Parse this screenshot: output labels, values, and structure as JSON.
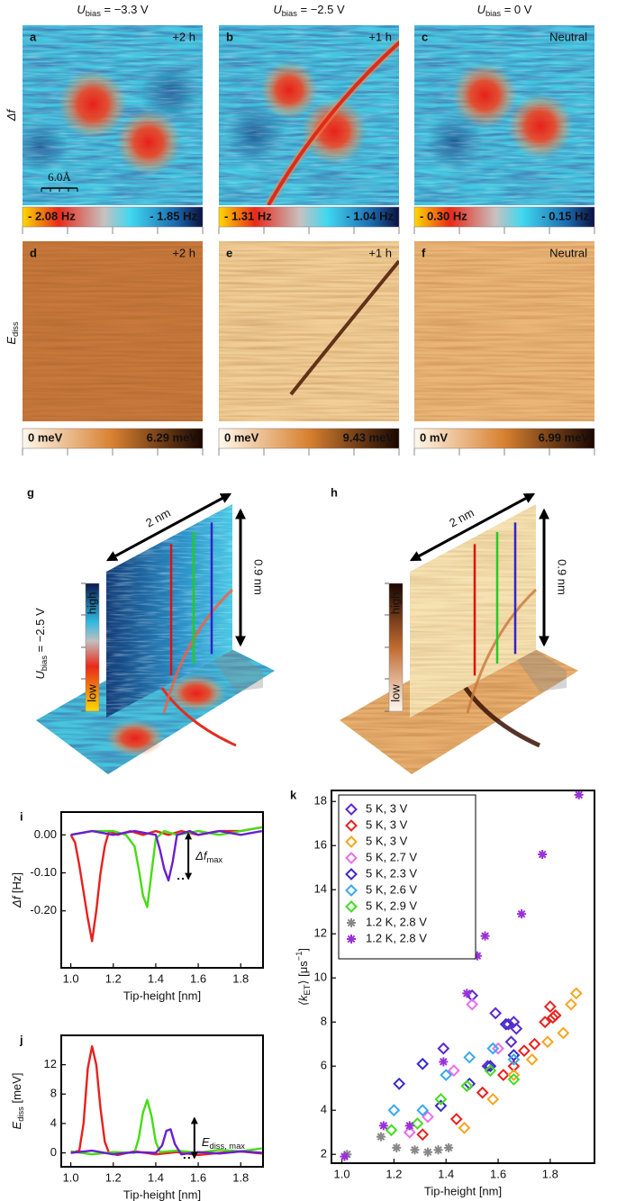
{
  "columns": [
    {
      "main": "U",
      "sub": "bias",
      "rest": " = −3.3 V"
    },
    {
      "main": "U",
      "sub": "bias",
      "rest": " = −2.5 V"
    },
    {
      "main": "U",
      "sub": "bias",
      "rest": " = 0 V"
    }
  ],
  "rows": [
    {
      "main": "Δf"
    },
    {
      "main": "E",
      "sub": "diss"
    }
  ],
  "panels": [
    {
      "letter": "a",
      "tag": "+2 h"
    },
    {
      "letter": "b",
      "tag": "+1 h"
    },
    {
      "letter": "c",
      "tag": "Neutral"
    },
    {
      "letter": "d",
      "tag": "+2 h"
    },
    {
      "letter": "e",
      "tag": "+1 h"
    },
    {
      "letter": "f",
      "tag": "Neutral"
    }
  ],
  "scale_bar": "6.0Å",
  "colorbars": [
    {
      "min": "- 2.08 Hz",
      "max": "- 1.85 Hz"
    },
    {
      "min": "- 1.31 Hz",
      "max": "- 1.04 Hz"
    },
    {
      "min": "- 0.30 Hz",
      "max": "- 0.15 Hz"
    },
    {
      "min": "0 meV",
      "max": "6.29 meV"
    },
    {
      "min": "0 meV",
      "max": "9.43 meV"
    },
    {
      "min": "0 mV",
      "max": "6.99 meV"
    }
  ],
  "maps_3d": [
    {
      "letter": "g",
      "width": "2 nm",
      "height": "0.9 nm",
      "scale_high": "high",
      "scale_low": "low",
      "bias": {
        "main": "U",
        "sub": "bias",
        "rest": " = −2.5 V"
      }
    },
    {
      "letter": "h",
      "width": "2 nm",
      "height": "0.9 nm",
      "scale_high": "high",
      "scale_low": "low"
    }
  ],
  "chart_data": [
    {
      "type": "line",
      "letter": "i",
      "xlabel": "Tip-height [nm]",
      "ylabel": {
        "main": "Δf",
        "rest": " [Hz]"
      },
      "annotation": {
        "main": "Δf",
        "sub": "max"
      },
      "xlim": [
        0.955,
        1.905
      ],
      "ylim": [
        -0.35,
        0.06
      ],
      "xticks": [
        {
          "value": 1.0,
          "label": "1.0"
        },
        {
          "value": 1.2,
          "label": "1.2"
        },
        {
          "value": 1.4,
          "label": "1.4"
        },
        {
          "value": 1.6,
          "label": "1.6"
        },
        {
          "value": 1.8,
          "label": "1.8"
        }
      ],
      "yticks": [
        {
          "value": 0,
          "label": "0.00"
        },
        {
          "value": -0.1,
          "label": "-0.10"
        },
        {
          "value": -0.2,
          "label": "-0.20"
        }
      ],
      "series": [
        {
          "color": "#e8201c",
          "x": [
            1.0,
            1.02,
            1.04,
            1.06,
            1.08,
            1.1,
            1.12,
            1.14,
            1.16,
            1.18,
            1.22,
            1.28,
            1.34,
            1.4,
            1.46,
            1.52,
            1.6,
            1.7,
            1.8,
            1.9
          ],
          "values": [
            0.0,
            -0.02,
            -0.08,
            -0.15,
            -0.22,
            -0.28,
            -0.2,
            -0.1,
            -0.03,
            0.01,
            0.0,
            0.01,
            0.0,
            0.01,
            0.0,
            0.01,
            0.0,
            0.01,
            0.01,
            0.02
          ]
        },
        {
          "color": "#44dd11",
          "x": [
            1.0,
            1.1,
            1.2,
            1.26,
            1.3,
            1.32,
            1.34,
            1.36,
            1.38,
            1.4,
            1.44,
            1.5,
            1.6,
            1.7,
            1.8,
            1.9
          ],
          "values": [
            0.0,
            0.01,
            0.01,
            0.0,
            -0.03,
            -0.09,
            -0.16,
            -0.19,
            -0.1,
            -0.01,
            0.01,
            0.0,
            0.01,
            0.0,
            0.01,
            0.02
          ]
        },
        {
          "color": "#6a1fd0",
          "x": [
            1.0,
            1.1,
            1.2,
            1.3,
            1.4,
            1.42,
            1.44,
            1.46,
            1.48,
            1.5,
            1.56,
            1.6,
            1.7,
            1.8,
            1.9
          ],
          "values": [
            0.0,
            0.01,
            0.0,
            0.01,
            0.0,
            -0.04,
            -0.09,
            -0.12,
            -0.07,
            0.0,
            0.01,
            0.0,
            0.01,
            0.0,
            0.01
          ]
        }
      ]
    },
    {
      "type": "line",
      "letter": "j",
      "xlabel": "Tip-height [nm]",
      "ylabel": {
        "main": "E",
        "sub": "diss",
        "rest": " [meV]"
      },
      "annotation": {
        "main": "E",
        "sub": "diss, max"
      },
      "xlim": [
        0.955,
        1.905
      ],
      "ylim": [
        -1.9,
        16.0
      ],
      "xticks": [
        {
          "value": 1.0,
          "label": "1.0"
        },
        {
          "value": 1.2,
          "label": "1.2"
        },
        {
          "value": 1.4,
          "label": "1.4"
        },
        {
          "value": 1.6,
          "label": "1.6"
        },
        {
          "value": 1.8,
          "label": "1.8"
        }
      ],
      "yticks": [
        0,
        4,
        8,
        12
      ],
      "series": [
        {
          "color": "#e8201c",
          "x": [
            1.0,
            1.04,
            1.06,
            1.08,
            1.1,
            1.12,
            1.14,
            1.16,
            1.18,
            1.22,
            1.3,
            1.4,
            1.5,
            1.6,
            1.7,
            1.8,
            1.9
          ],
          "values": [
            0.0,
            0.3,
            4.0,
            11.5,
            14.5,
            12.0,
            6.0,
            1.5,
            0.0,
            -0.3,
            0.2,
            -0.2,
            0.1,
            -0.3,
            0.0,
            0.2,
            -0.1
          ]
        },
        {
          "color": "#44dd11",
          "x": [
            1.0,
            1.1,
            1.2,
            1.3,
            1.32,
            1.34,
            1.36,
            1.38,
            1.4,
            1.42,
            1.5,
            1.6,
            1.7,
            1.8,
            1.9
          ],
          "values": [
            0.2,
            -0.2,
            0.1,
            0.0,
            2.0,
            5.5,
            7.2,
            5.0,
            1.5,
            0.1,
            0.3,
            0.0,
            0.4,
            0.2,
            0.6
          ]
        },
        {
          "color": "#6a1fd0",
          "x": [
            1.0,
            1.1,
            1.2,
            1.3,
            1.4,
            1.43,
            1.45,
            1.47,
            1.49,
            1.52,
            1.6,
            1.7,
            1.8,
            1.9
          ],
          "values": [
            0.0,
            0.3,
            -0.2,
            0.1,
            0.0,
            1.0,
            3.0,
            3.2,
            1.2,
            -0.2,
            0.1,
            -0.1,
            0.2,
            0.0
          ]
        }
      ]
    },
    {
      "type": "scatter",
      "letter": "k",
      "xlabel": "Tip-height [nm]",
      "ylabel": {
        "main": "⟨k",
        "sub": "ET",
        "rest": "⟩ [μs",
        "sup": "−1",
        "end": "]"
      },
      "legend": "upper left",
      "xlim": [
        0.96,
        1.97
      ],
      "ylim": [
        1.6,
        18.5
      ],
      "xticks": [
        {
          "value": 1.0,
          "label": "1.0"
        },
        {
          "value": 1.2,
          "label": "1.2"
        },
        {
          "value": 1.4,
          "label": "1.4"
        },
        {
          "value": 1.6,
          "label": "1.6"
        },
        {
          "value": 1.8,
          "label": "1.8"
        }
      ],
      "yticks": [
        2,
        4,
        6,
        8,
        10,
        12,
        14,
        16,
        18
      ],
      "series": [
        {
          "name": "5 K, 3 V",
          "color": "#5a2bd0",
          "marker": "diamond",
          "x": [
            1.39,
            1.5,
            1.59,
            1.64,
            1.66,
            1.67,
            1.65,
            1.56
          ],
          "values": [
            6.8,
            9.2,
            8.4,
            7.9,
            8.0,
            7.7,
            7.1,
            6.0
          ]
        },
        {
          "name": "5 K, 3 V",
          "color": "#e8231f",
          "marker": "diamond",
          "x": [
            1.31,
            1.44,
            1.54,
            1.62,
            1.66,
            1.7,
            1.74,
            1.78,
            1.8,
            1.81,
            1.82
          ],
          "values": [
            2.9,
            3.6,
            4.8,
            5.6,
            6.0,
            6.7,
            7.0,
            8.0,
            8.7,
            8.2,
            8.3
          ]
        },
        {
          "name": "5 K, 3 V",
          "color": "#f5a623",
          "marker": "diamond",
          "x": [
            1.47,
            1.58,
            1.66,
            1.73,
            1.79,
            1.85,
            1.88,
            1.9
          ],
          "values": [
            3.2,
            4.5,
            5.6,
            6.3,
            7.1,
            7.5,
            8.8,
            9.3
          ]
        },
        {
          "name": "5 K, 2.7 V",
          "color": "#e870e8",
          "marker": "diamond",
          "x": [
            1.26,
            1.33,
            1.43,
            1.5,
            1.6
          ],
          "values": [
            3.0,
            3.7,
            5.8,
            8.8,
            6.8
          ]
        },
        {
          "name": "5 K, 2.3 V",
          "color": "#3a2bc8",
          "marker": "diamond",
          "x": [
            1.22,
            1.31,
            1.38,
            1.49,
            1.57,
            1.63,
            1.66
          ],
          "values": [
            5.2,
            6.1,
            4.2,
            5.2,
            6.0,
            7.9,
            6.5
          ]
        },
        {
          "name": "5 K, 2.6 V",
          "color": "#3aa8f0",
          "marker": "diamond",
          "x": [
            1.2,
            1.31,
            1.4,
            1.49,
            1.58,
            1.66
          ],
          "values": [
            4.0,
            4.0,
            5.6,
            6.4,
            6.8,
            6.3
          ]
        },
        {
          "name": "5 K, 2.9 V",
          "color": "#44dd22",
          "marker": "diamond",
          "x": [
            1.19,
            1.29,
            1.38,
            1.48,
            1.57,
            1.66
          ],
          "values": [
            3.1,
            3.4,
            4.5,
            5.1,
            5.8,
            5.4
          ]
        },
        {
          "name": "1.2 K, 2.8 V",
          "color": "#888888",
          "marker": "star",
          "x": [
            1.02,
            1.15,
            1.21,
            1.28,
            1.33,
            1.37,
            1.41
          ],
          "values": [
            2.0,
            2.8,
            2.3,
            2.2,
            2.1,
            2.2,
            2.3
          ]
        },
        {
          "name": "1.2 K, 2.8 V",
          "color": "#9b30d8",
          "marker": "star",
          "x": [
            1.01,
            1.16,
            1.26,
            1.39,
            1.48,
            1.52,
            1.55,
            1.69,
            1.77,
            1.91
          ],
          "values": [
            1.9,
            3.3,
            3.3,
            6.2,
            9.3,
            11.0,
            11.9,
            12.9,
            15.6,
            18.3
          ]
        }
      ]
    }
  ]
}
